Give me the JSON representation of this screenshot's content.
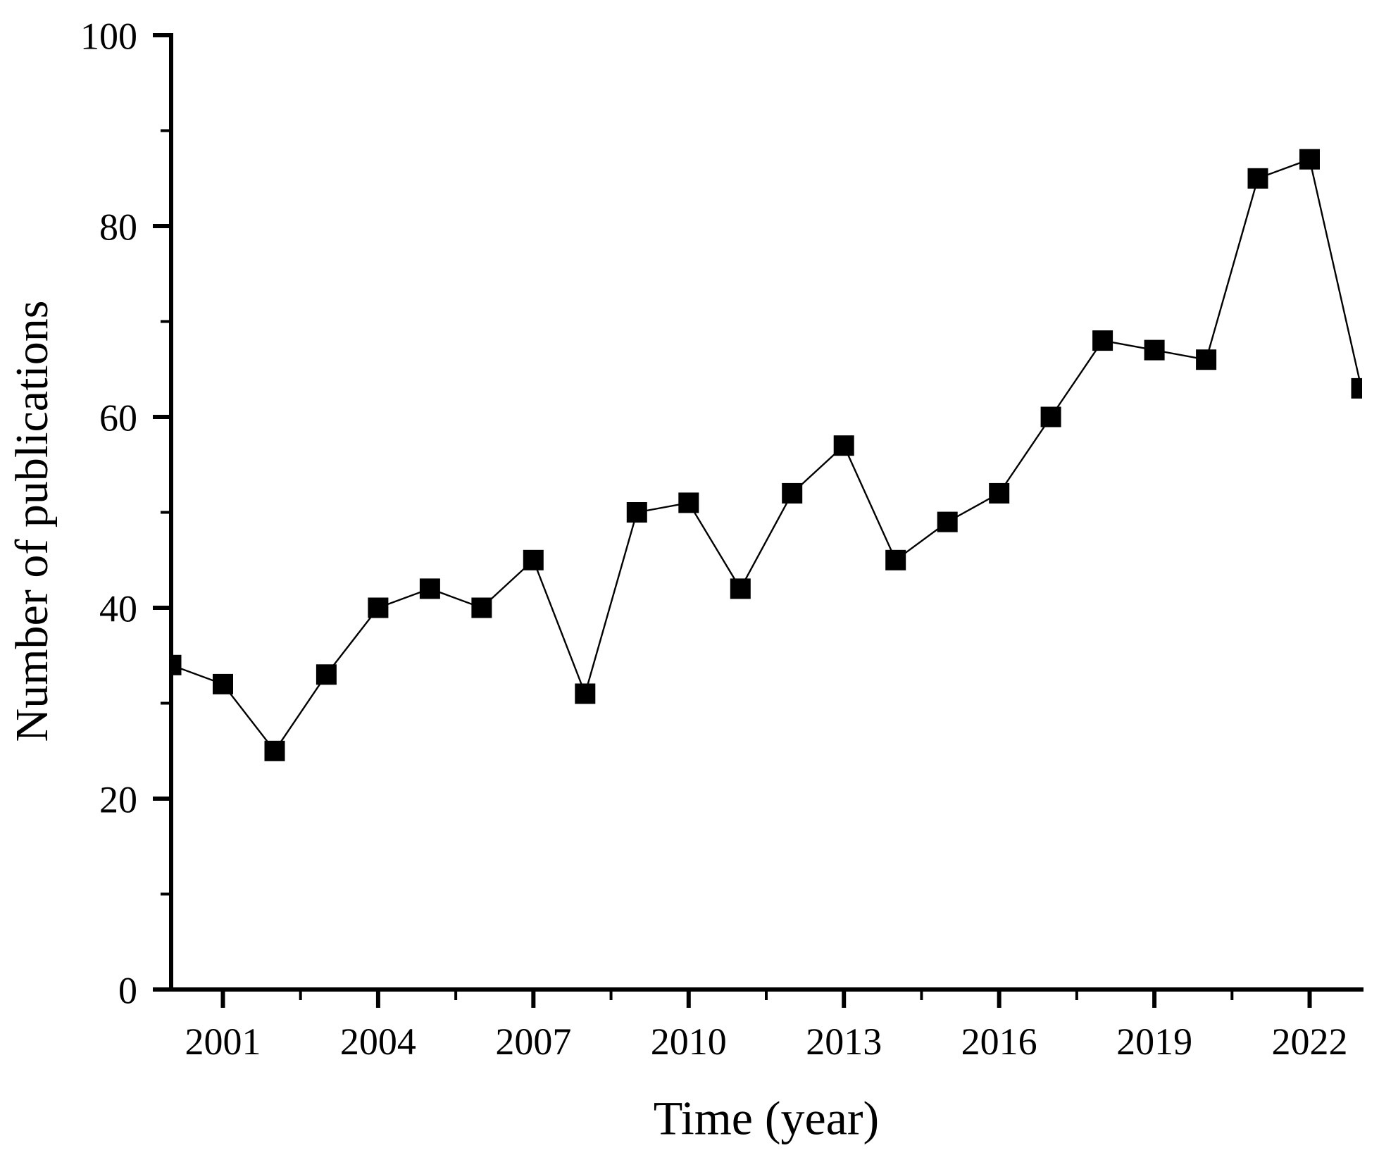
{
  "chart_data": {
    "type": "line",
    "title": "",
    "xlabel": "Time (year)",
    "ylabel": "Number of publications",
    "x": [
      2000,
      2001,
      2002,
      2003,
      2004,
      2005,
      2006,
      2007,
      2008,
      2009,
      2010,
      2011,
      2012,
      2013,
      2014,
      2015,
      2016,
      2017,
      2018,
      2019,
      2020,
      2021,
      2022,
      2023
    ],
    "series": [
      {
        "name": "Number of publications",
        "values": [
          34,
          32,
          25,
          33,
          40,
          42,
          40,
          45,
          31,
          50,
          51,
          42,
          52,
          57,
          45,
          49,
          52,
          60,
          68,
          67,
          66,
          85,
          87,
          63
        ]
      }
    ],
    "xlim": [
      2000,
      2023
    ],
    "ylim": [
      0,
      100
    ],
    "x_major_ticks": [
      2001,
      2004,
      2007,
      2010,
      2013,
      2016,
      2019,
      2022
    ],
    "x_minor_ticks": [
      2002.5,
      2005.5,
      2008.5,
      2011.5,
      2014.5,
      2017.5,
      2020.5
    ],
    "y_major_ticks": [
      0,
      20,
      40,
      60,
      80,
      100
    ],
    "y_minor_ticks": [
      10,
      30,
      50,
      70,
      90
    ],
    "marker": "square",
    "grid": false,
    "legend": false,
    "colors": {
      "line": "#000000",
      "marker": "#000000",
      "axis": "#000000",
      "text": "#000000",
      "background": "#ffffff"
    }
  }
}
